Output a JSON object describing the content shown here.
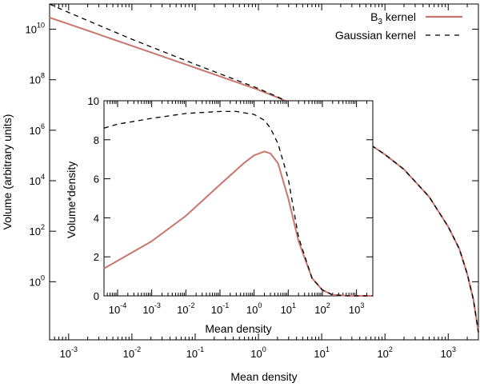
{
  "chart_data": [
    {
      "type": "line",
      "panel": "main",
      "xlabel": "Mean density",
      "ylabel": "Volume (arbitrary units)",
      "xscale": "log",
      "yscale": "log",
      "xlim": [
        0.0005,
        3000
      ],
      "ylim": [
        0.005,
        100000000000.0
      ],
      "xticks": [
        {
          "base": "10",
          "exp": "-3"
        },
        {
          "base": "10",
          "exp": "-2"
        },
        {
          "base": "10",
          "exp": "-1"
        },
        {
          "base": "10",
          "exp": "0"
        },
        {
          "base": "10",
          "exp": "1"
        },
        {
          "base": "10",
          "exp": "2"
        },
        {
          "base": "10",
          "exp": "3"
        }
      ],
      "yticks": [
        {
          "base": "10",
          "exp": "0"
        },
        {
          "base": "10",
          "exp": "2"
        },
        {
          "base": "10",
          "exp": "4"
        },
        {
          "base": "10",
          "exp": "6"
        },
        {
          "base": "10",
          "exp": "8"
        },
        {
          "base": "10",
          "exp": "10"
        }
      ],
      "legend_position": "top-right",
      "legend": [
        {
          "prefix": "B",
          "sub": "3",
          "suffix": " kernel",
          "color": "#c8766e",
          "style": "solid"
        },
        {
          "prefix": "Gaussian kernel",
          "sub": "",
          "suffix": "",
          "color": "#000000",
          "style": "dashed"
        }
      ],
      "series": [
        {
          "key": "b3",
          "color": "#c8766e",
          "style": "solid",
          "x": [
            0.0005,
            0.001,
            0.01,
            0.1,
            1,
            2,
            5,
            10,
            20,
            50,
            100,
            200,
            500,
            1000,
            1500,
            2000,
            2500,
            3000
          ],
          "y": [
            29000000000.0,
            16000000000.0,
            2200000000.0,
            300000000.0,
            40000000.0,
            20000000.0,
            7000000.0,
            3300000.0,
            1300000.0,
            350000.0,
            110000.0,
            28000.0,
            2300.0,
            150,
            20,
            2,
            0.2,
            0.01
          ]
        },
        {
          "key": "gauss",
          "color": "#000000",
          "style": "dashed",
          "x": [
            0.0005,
            0.001,
            0.01,
            0.1,
            1,
            2,
            5,
            10,
            20,
            50,
            100,
            200,
            500,
            1000,
            1500,
            2000,
            2500,
            3000
          ],
          "y": [
            100000000000.0,
            46000000000.0,
            4000000000.0,
            410000000.0,
            45000000.0,
            21000000.0,
            7200000.0,
            3300000.0,
            1300000.0,
            350000.0,
            110000.0,
            28000.0,
            2300.0,
            150,
            20,
            2,
            0.2,
            0.01
          ]
        }
      ]
    },
    {
      "type": "line",
      "panel": "inset",
      "xlabel": "Mean density",
      "ylabel": "Volume*density",
      "xscale": "log",
      "yscale": "linear",
      "xlim": [
        4e-05,
        3000
      ],
      "ylim": [
        0,
        10
      ],
      "xticks": [
        {
          "base": "10",
          "exp": "-4"
        },
        {
          "base": "10",
          "exp": "-3"
        },
        {
          "base": "10",
          "exp": "-2"
        },
        {
          "base": "10",
          "exp": "-1"
        },
        {
          "base": "10",
          "exp": "0"
        },
        {
          "base": "10",
          "exp": "1"
        },
        {
          "base": "10",
          "exp": "2"
        },
        {
          "base": "10",
          "exp": "3"
        }
      ],
      "yticks": [
        "0",
        "2",
        "4",
        "6",
        "8",
        "10"
      ],
      "series": [
        {
          "key": "b3",
          "color": "#c8766e",
          "style": "solid",
          "x": [
            4e-05,
            0.0001,
            0.001,
            0.01,
            0.1,
            0.5,
            1,
            2,
            3,
            5,
            10,
            20,
            50,
            100,
            200,
            500,
            1000,
            3000
          ],
          "y": [
            1.4,
            1.8,
            2.8,
            4.1,
            5.7,
            6.8,
            7.2,
            7.4,
            7.3,
            6.8,
            5.0,
            2.8,
            0.9,
            0.3,
            0.05,
            0.01,
            0,
            0
          ]
        },
        {
          "key": "gauss",
          "color": "#000000",
          "style": "dashed",
          "x": [
            4e-05,
            0.0001,
            0.001,
            0.01,
            0.1,
            0.3,
            1,
            2,
            3,
            5,
            10,
            20,
            50,
            100,
            200,
            500,
            1000,
            3000
          ],
          "y": [
            8.6,
            8.8,
            9.1,
            9.35,
            9.45,
            9.45,
            9.3,
            9.0,
            8.6,
            7.8,
            6.0,
            3.0,
            0.9,
            0.3,
            0.05,
            0.01,
            0,
            0
          ]
        }
      ]
    }
  ]
}
